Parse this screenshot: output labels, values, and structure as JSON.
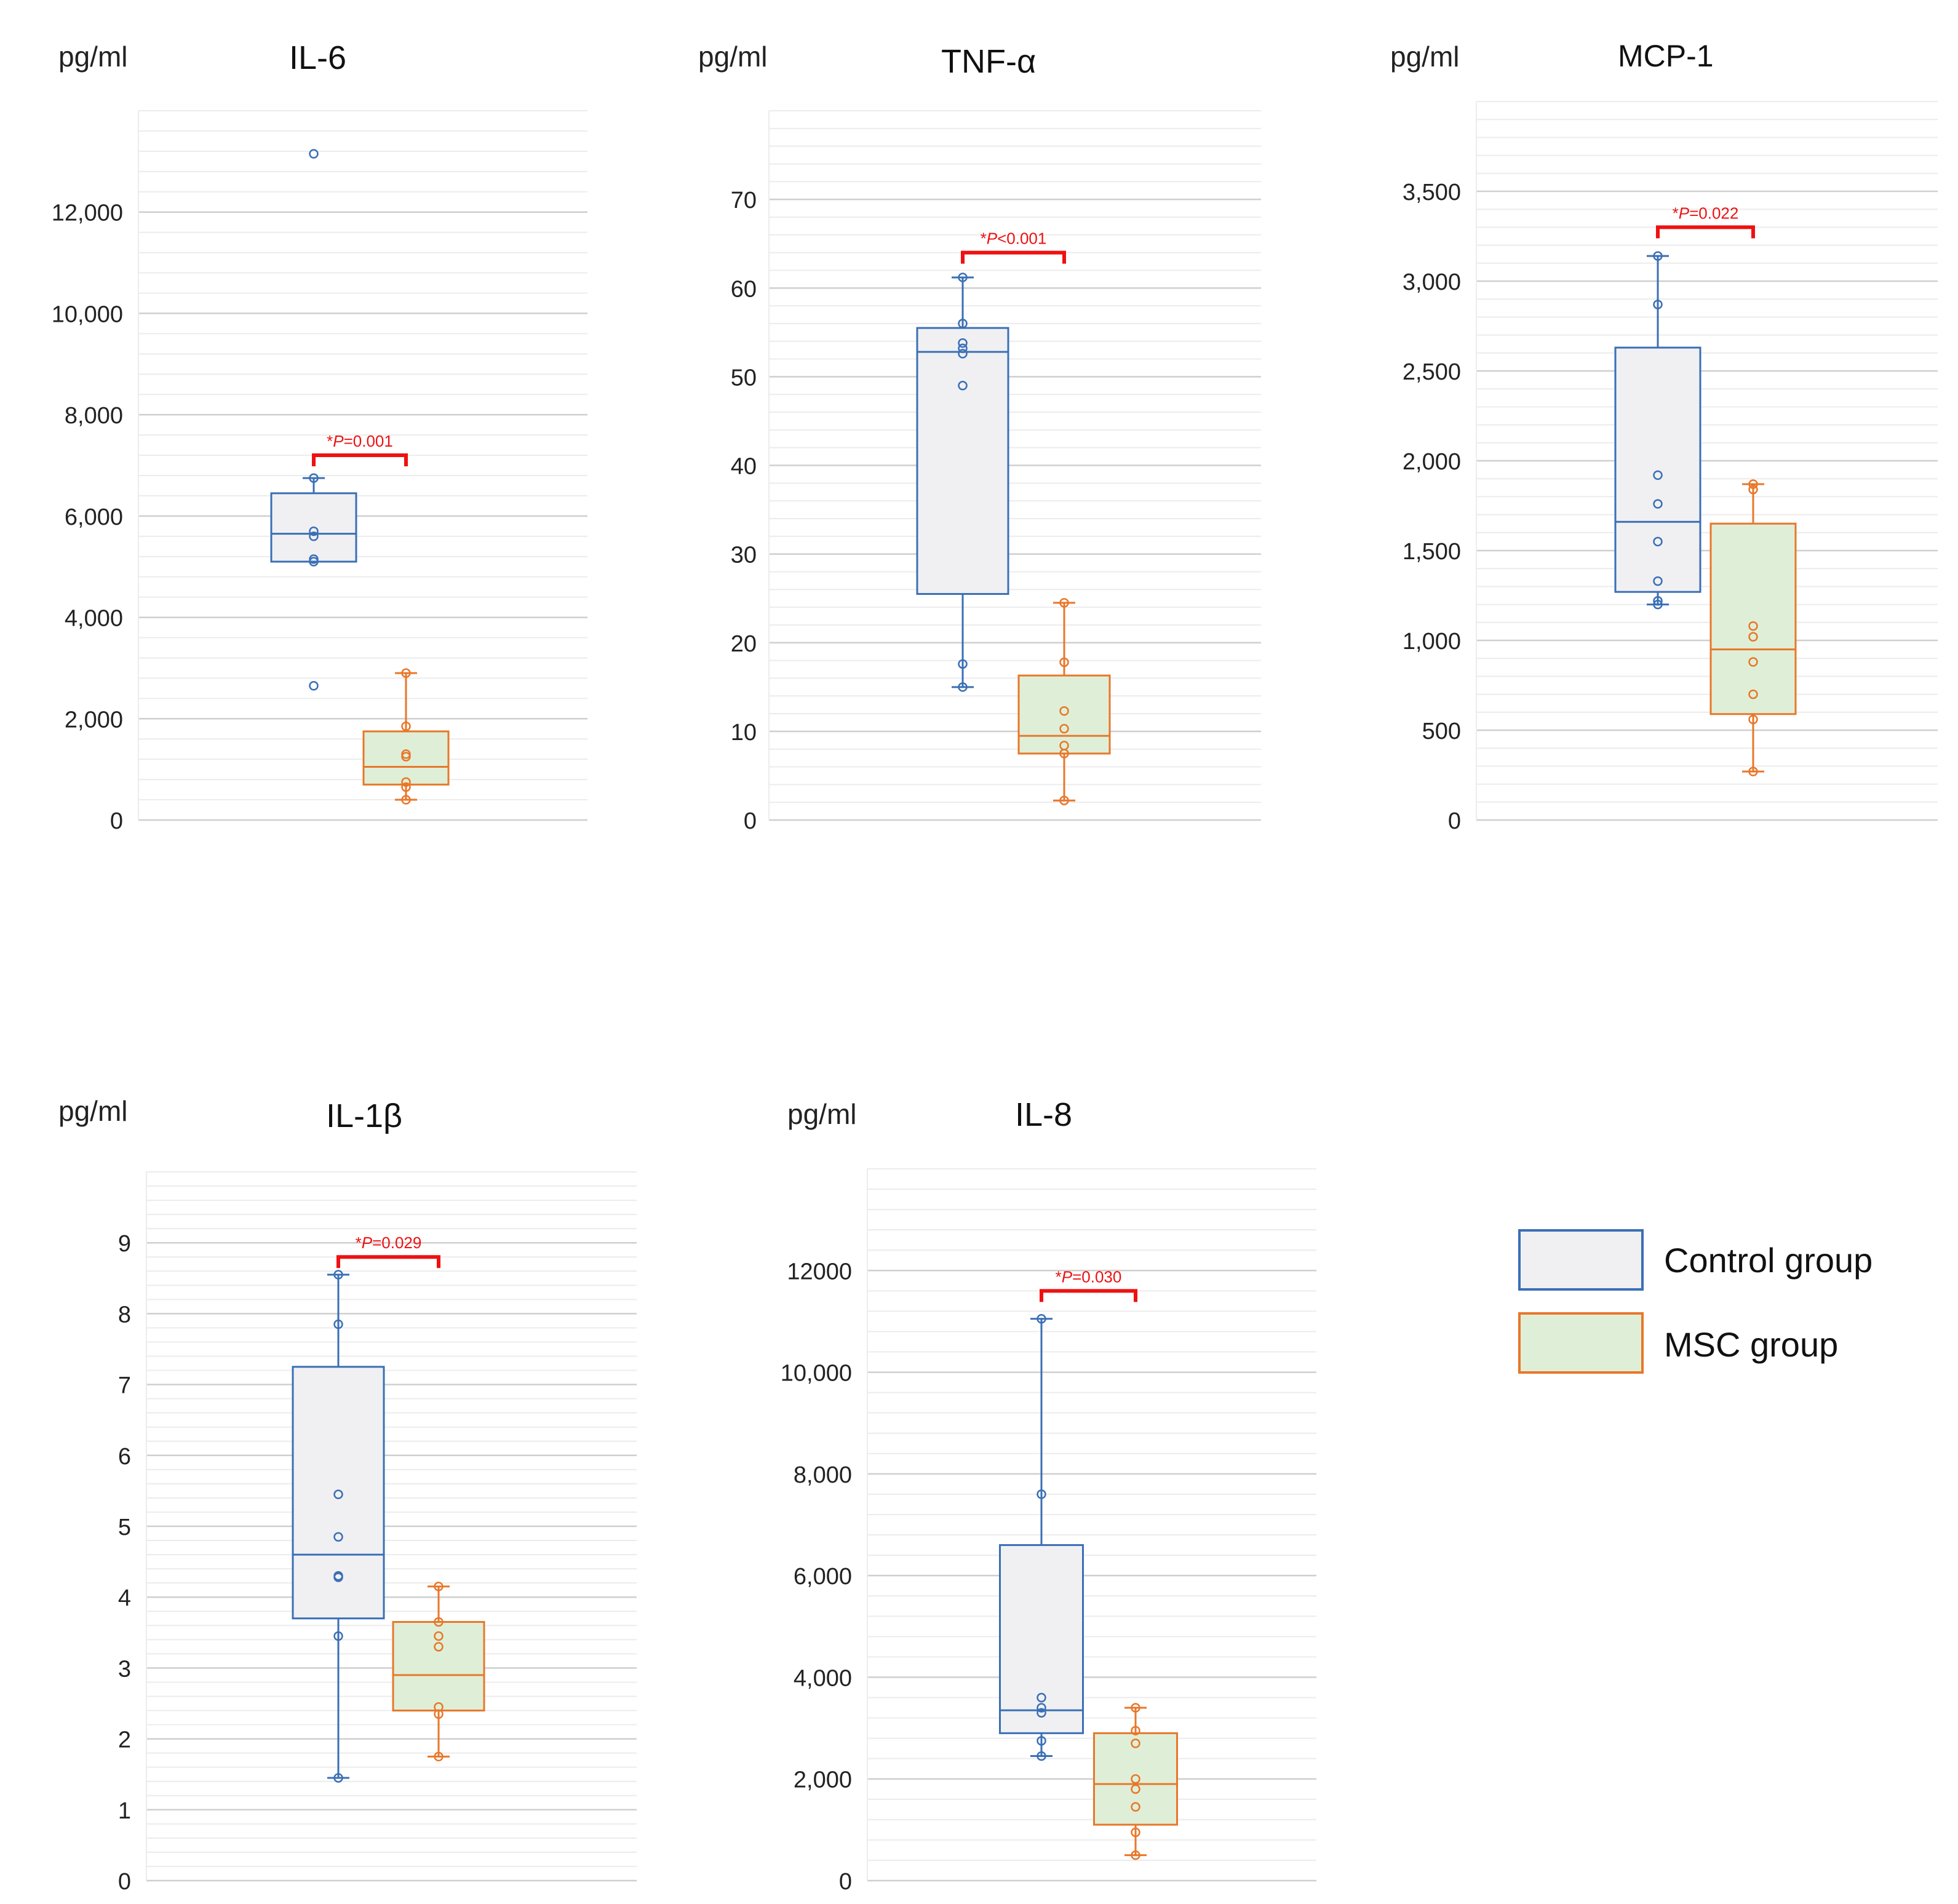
{
  "colors": {
    "control_stroke": "#3a6fb5",
    "control_fill": "#f0f0f3",
    "msc_stroke": "#e8772a",
    "msc_fill": "#dfefd7",
    "pvalue": "#ee1111",
    "grid_major": "#cfcfcf",
    "grid_minor": "#ececec",
    "axis_text": "#222222"
  },
  "legend": {
    "items": [
      {
        "key": "control",
        "label": "Control group"
      },
      {
        "key": "msc",
        "label": "MSC group"
      }
    ]
  },
  "chart_data": [
    {
      "type": "box",
      "title": "IL-6",
      "unit_label": "pg/ml",
      "ylim": [
        0,
        14000
      ],
      "major_ticks": [
        0,
        2000,
        4000,
        6000,
        8000,
        10000,
        12000
      ],
      "tick_labels": [
        "0",
        "2,000",
        "4,000",
        "6,000",
        "8,000",
        "10,000",
        "12,000"
      ],
      "minor_step": 400,
      "p_label": "P",
      "p_value": "=0.001",
      "p_height": 7200,
      "groups": [
        {
          "name": "Control group",
          "key": "control",
          "whisker_low": 5100,
          "q1": 5100,
          "median": 5650,
          "q3": 6450,
          "whisker_high": 6750,
          "points": [
            13150,
            6750,
            5700,
            5600,
            5150,
            5100,
            2650
          ]
        },
        {
          "name": "MSC group",
          "key": "msc",
          "whisker_low": 400,
          "q1": 700,
          "median": 1050,
          "q3": 1750,
          "whisker_high": 2900,
          "points": [
            2900,
            1850,
            1300,
            1250,
            750,
            650,
            400
          ]
        }
      ]
    },
    {
      "type": "box",
      "title": "TNF-α",
      "unit_label": "pg/ml",
      "ylim": [
        0,
        80
      ],
      "major_ticks": [
        0,
        10,
        20,
        30,
        40,
        50,
        60,
        70
      ],
      "tick_labels": [
        "0",
        "10",
        "20",
        "30",
        "40",
        "50",
        "60",
        "70"
      ],
      "minor_step": 2,
      "p_label": "P",
      "p_value": "<0.001",
      "p_height": 64,
      "groups": [
        {
          "name": "Control group",
          "key": "control",
          "whisker_low": 15,
          "q1": 25.5,
          "median": 52.8,
          "q3": 55.5,
          "whisker_high": 61.2,
          "points": [
            61.2,
            56,
            53.8,
            53.2,
            52.6,
            49,
            17.6,
            15
          ]
        },
        {
          "name": "MSC group",
          "key": "msc",
          "whisker_low": 2.2,
          "q1": 7.5,
          "median": 9.5,
          "q3": 16.3,
          "whisker_high": 24.5,
          "points": [
            24.5,
            17.8,
            12.3,
            10.3,
            8.4,
            7.5,
            2.2
          ]
        }
      ]
    },
    {
      "type": "box",
      "title": "MCP-1",
      "unit_label": "pg/ml",
      "ylim": [
        0,
        4000
      ],
      "major_ticks": [
        0,
        500,
        1000,
        1500,
        2000,
        2500,
        3000,
        3500
      ],
      "tick_labels": [
        "0",
        "500",
        "1,000",
        "1,500",
        "2,000",
        "2,500",
        "3,000",
        "3,500"
      ],
      "minor_step": 100,
      "p_label": "P",
      "p_value": "=0.022",
      "p_height": 3300,
      "groups": [
        {
          "name": "Control group",
          "key": "control",
          "whisker_low": 1200,
          "q1": 1270,
          "median": 1660,
          "q3": 2630,
          "whisker_high": 3140,
          "points": [
            3140,
            2870,
            1920,
            1760,
            1550,
            1330,
            1220,
            1200
          ]
        },
        {
          "name": "MSC group",
          "key": "msc",
          "whisker_low": 270,
          "q1": 590,
          "median": 950,
          "q3": 1650,
          "whisker_high": 1870,
          "points": [
            1870,
            1840,
            1080,
            1020,
            880,
            700,
            560,
            270
          ]
        }
      ]
    },
    {
      "type": "box",
      "title": "IL-1β",
      "unit_label": "pg/ml",
      "ylim": [
        0,
        10
      ],
      "major_ticks": [
        0,
        1,
        2,
        3,
        4,
        5,
        6,
        7,
        8,
        9
      ],
      "tick_labels": [
        "0",
        "1",
        "2",
        "3",
        "4",
        "5",
        "6",
        "7",
        "8",
        "9"
      ],
      "minor_step": 0.2,
      "p_label": "P",
      "p_value": "=0.029",
      "p_height": 8.8,
      "groups": [
        {
          "name": "Control group",
          "key": "control",
          "whisker_low": 1.45,
          "q1": 3.7,
          "median": 4.6,
          "q3": 7.25,
          "whisker_high": 8.55,
          "points": [
            8.55,
            7.85,
            5.45,
            4.85,
            4.3,
            4.28,
            3.45,
            1.45
          ]
        },
        {
          "name": "MSC group",
          "key": "msc",
          "whisker_low": 1.75,
          "q1": 2.4,
          "median": 2.9,
          "q3": 3.65,
          "whisker_high": 4.15,
          "points": [
            4.15,
            3.65,
            3.45,
            3.3,
            2.45,
            2.35,
            1.75
          ]
        }
      ]
    },
    {
      "type": "box",
      "title": "IL-8",
      "unit_label": "pg/ml",
      "ylim": [
        0,
        14000
      ],
      "major_ticks": [
        0,
        2000,
        4000,
        6000,
        8000,
        10000,
        12000
      ],
      "tick_labels": [
        "0",
        "2,000",
        "4,000",
        "6,000",
        "8,000",
        "10,000",
        "12000"
      ],
      "minor_step": 400,
      "p_label": "P",
      "p_value": "=0.030",
      "p_height": 11600,
      "groups": [
        {
          "name": "Control group",
          "key": "control",
          "whisker_low": 2450,
          "q1": 2900,
          "median": 3350,
          "q3": 6600,
          "whisker_high": 11050,
          "points": [
            11050,
            7600,
            3600,
            3400,
            3300,
            2750,
            2450
          ]
        },
        {
          "name": "MSC group",
          "key": "msc",
          "whisker_low": 500,
          "q1": 1100,
          "median": 1900,
          "q3": 2900,
          "whisker_high": 3400,
          "points": [
            3400,
            2950,
            2700,
            2000,
            1800,
            1450,
            950,
            500
          ]
        }
      ]
    }
  ]
}
